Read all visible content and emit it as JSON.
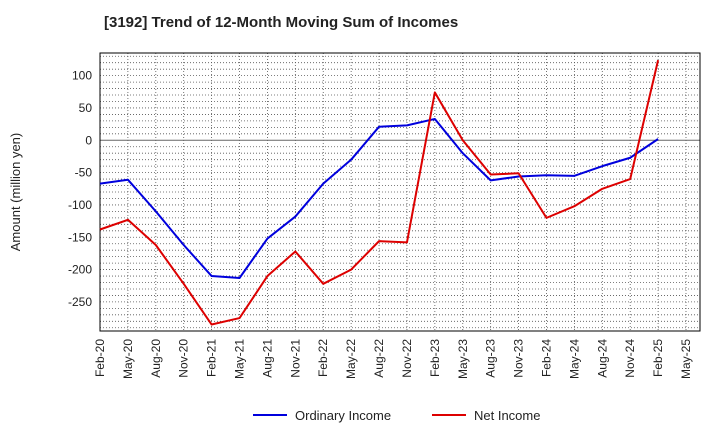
{
  "chart_data": {
    "type": "line",
    "title": "[3192]  Trend of 12-Month Moving Sum of Incomes",
    "xlabel": "",
    "ylabel": "Amount (million yen)",
    "ylim": [
      -295,
      135
    ],
    "yticks": [
      100,
      50,
      0,
      -50,
      -100,
      -150,
      -200,
      -250
    ],
    "categories": [
      "Feb-20",
      "May-20",
      "Aug-20",
      "Nov-20",
      "Feb-21",
      "May-21",
      "Aug-21",
      "Nov-21",
      "Feb-22",
      "May-22",
      "Aug-22",
      "Nov-22",
      "Feb-23",
      "May-23",
      "Aug-23",
      "Nov-23",
      "Feb-24",
      "May-24",
      "Aug-24",
      "Nov-24",
      "Feb-25",
      "May-25"
    ],
    "grid": true,
    "legend_position": "bottom",
    "series": [
      {
        "name": "Ordinary Income",
        "color": "#0000dd",
        "values": [
          -67,
          -61,
          -110,
          -162,
          -210,
          -213,
          -152,
          -118,
          -67,
          -30,
          21,
          23,
          33,
          -20,
          -62,
          -56,
          -54,
          -55,
          -40,
          -27,
          2,
          null
        ]
      },
      {
        "name": "Net Income",
        "color": "#dd0000",
        "values": [
          -138,
          -123,
          -162,
          -222,
          -285,
          -275,
          -210,
          -172,
          -222,
          -200,
          -156,
          -158,
          74,
          0,
          -53,
          -51,
          -120,
          -102,
          -75,
          -60,
          124,
          null
        ]
      }
    ]
  }
}
